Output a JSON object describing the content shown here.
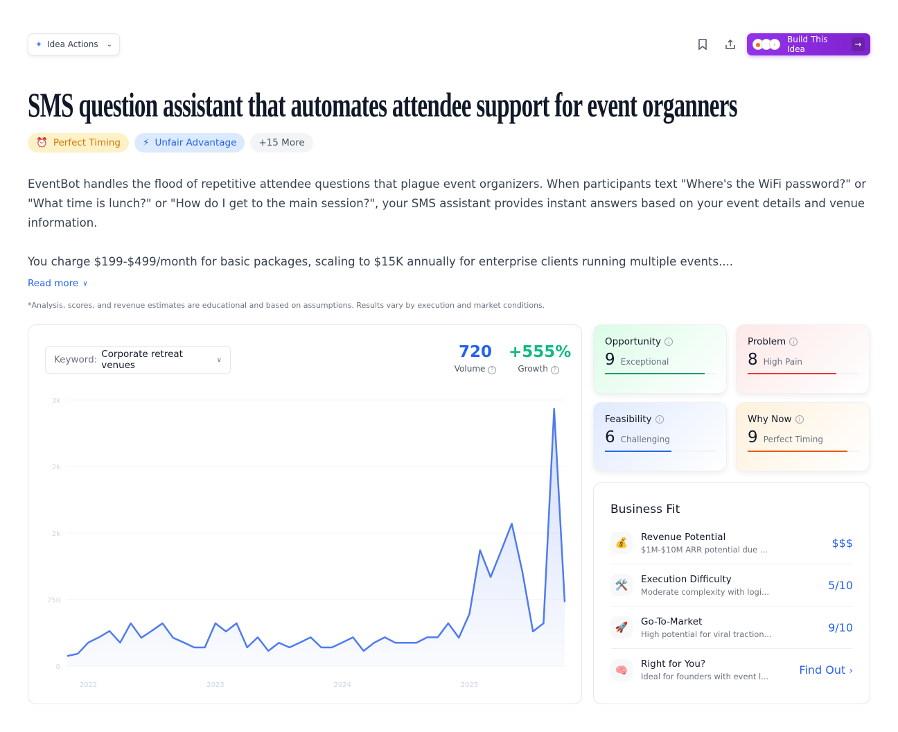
{
  "header": {
    "idea_actions": "Idea Actions",
    "build_label": "Build This Idea"
  },
  "title": "SMS question assistant that automates attendee support for event organners",
  "tags": [
    {
      "icon": "⏰",
      "label": "Perfect Timing"
    },
    {
      "icon": "⚡",
      "label": "Unfair Advantage"
    },
    {
      "label": "+15 More"
    }
  ],
  "description": [
    "EventBot handles the flood of repetitive attendee questions that plague event organizers. When participants text \"Where's the WiFi password?\" or \"What time is lunch?\" or \"How do I get to the main session?\", your SMS assistant provides instant answers based on your event details and venue information.",
    "You charge $199-$499/month for basic packages, scaling to $15K annually for enterprise clients running multiple events...."
  ],
  "read_more": "Read more",
  "disclaimer": "*Analysis, scores, and revenue estimates are educational and based on assumptions. Results vary by execution and market conditions.",
  "keyword": {
    "label": "Keyword:",
    "value": "Corporate retreat venues"
  },
  "stats": {
    "volume": "720",
    "volume_label": "Volume",
    "growth": "+555%",
    "growth_label": "Growth"
  },
  "chart_data": {
    "type": "area",
    "ylim": [
      0,
      3000
    ],
    "yticks": [
      {
        "v": 0,
        "label": "0"
      },
      {
        "v": 750,
        "label": "750"
      },
      {
        "v": 1500,
        "label": "2k"
      },
      {
        "v": 2250,
        "label": "2k"
      },
      {
        "v": 3000,
        "label": "3k"
      }
    ],
    "xticks": [
      {
        "i": 2,
        "label": "2022"
      },
      {
        "i": 14,
        "label": "2023"
      },
      {
        "i": 26,
        "label": "2024"
      },
      {
        "i": 38,
        "label": "2025"
      }
    ],
    "values": [
      114,
      140,
      267,
      325,
      396,
      264,
      483,
      320,
      399,
      483,
      320,
      267,
      211,
      211,
      483,
      391,
      483,
      211,
      325,
      172,
      264,
      211,
      267,
      325,
      211,
      211,
      267,
      325,
      172,
      264,
      325,
      264,
      264,
      264,
      325,
      325,
      483,
      320,
      589,
      1307,
      1004,
      1302,
      1606,
      1064,
      391,
      483,
      2900,
      721
    ],
    "grid": true,
    "color": "#4f7bf0"
  },
  "scores": [
    {
      "label": "Opportunity",
      "value": "9",
      "desc": "Exceptional",
      "fraction": 0.9,
      "color": "#10a06a",
      "bg": "linear-gradient(135deg,#dcfce7,#fff)"
    },
    {
      "label": "Problem",
      "value": "8",
      "desc": "High Pain",
      "fraction": 0.8,
      "color": "#e53935",
      "bg": "linear-gradient(135deg,#fde8e8,#fff)"
    },
    {
      "label": "Feasibility",
      "value": "6",
      "desc": "Challenging",
      "fraction": 0.6,
      "color": "#2563eb",
      "bg": "linear-gradient(135deg,#e0eaff,#fff)"
    },
    {
      "label": "Why Now",
      "value": "9",
      "desc": "Perfect Timing",
      "fraction": 0.9,
      "color": "#ea580c",
      "bg": "linear-gradient(135deg,#fff1dc,#fff)"
    }
  ],
  "business_fit": {
    "title": "Business Fit",
    "rows": [
      {
        "icon": "💰",
        "title": "Revenue Potential",
        "sub": "$1M-$10M ARR potential due ...",
        "value": "$$$"
      },
      {
        "icon": "🛠️",
        "title": "Execution Difficulty",
        "sub": "Moderate complexity with logi...",
        "value": "5/10"
      },
      {
        "icon": "🚀",
        "title": "Go-To-Market",
        "sub": "High potential for viral traction...",
        "value": "9/10"
      },
      {
        "icon": "🧠",
        "title": "Right for You?",
        "sub": "Ideal for founders with event l...",
        "value": "Find Out"
      }
    ]
  }
}
